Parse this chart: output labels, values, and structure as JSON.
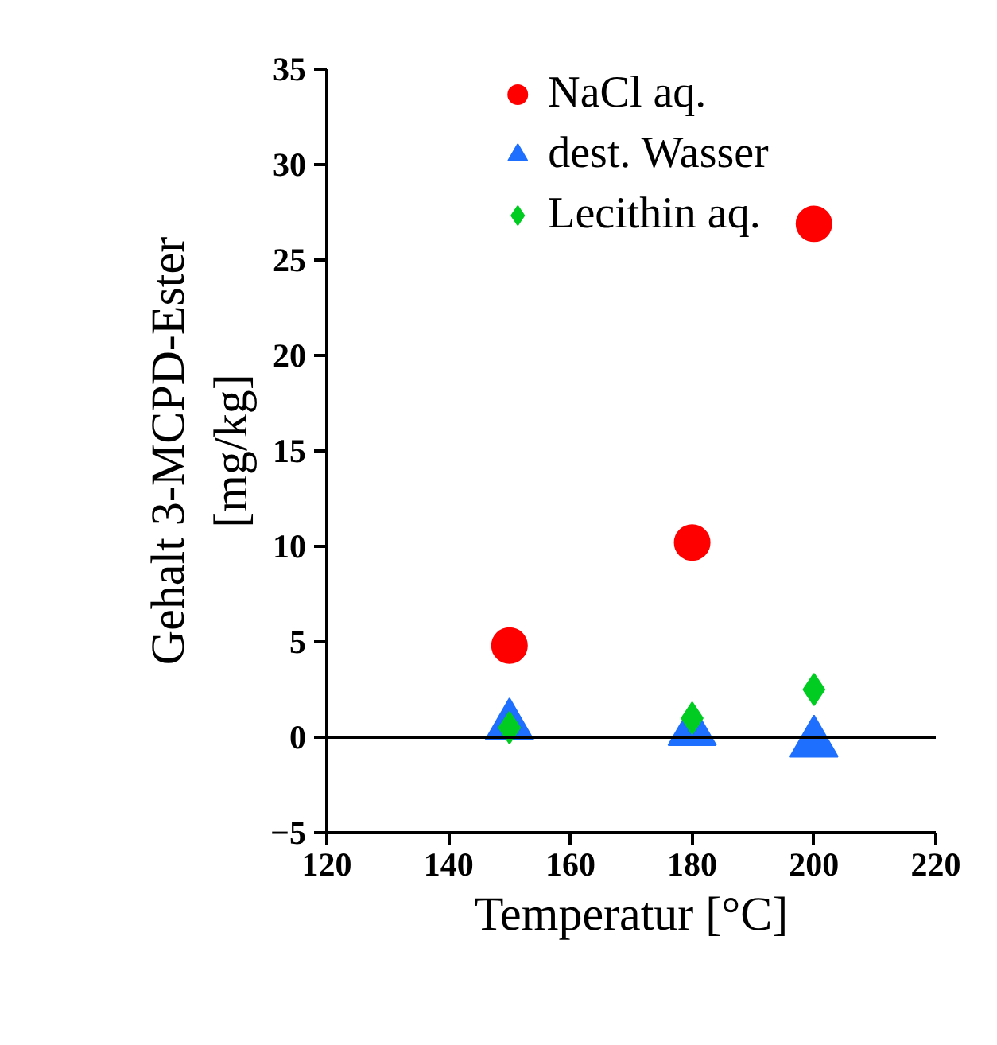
{
  "chart_data": {
    "type": "scatter",
    "xlabel": "Temperatur [°C]",
    "ylabel": "Gehalt 3-MCPD-Ester\n[mg/kg]",
    "x": [
      150,
      180,
      200
    ],
    "series": [
      {
        "name": "NaCl aq.",
        "color": "#ff0000",
        "marker": "circle",
        "values": [
          4.8,
          10.2,
          26.9
        ]
      },
      {
        "name": "dest. Wasser",
        "color": "#1f6fff",
        "marker": "triangle",
        "values": [
          0.6,
          0.3,
          -0.3
        ]
      },
      {
        "name": "Lecithin aq.",
        "color": "#00cc22",
        "marker": "diamond",
        "values": [
          0.5,
          1.0,
          2.5
        ]
      }
    ],
    "xlim": [
      120,
      220
    ],
    "xticks": [
      120,
      140,
      160,
      180,
      200,
      220
    ],
    "ylim": [
      -5,
      35
    ],
    "yticks": [
      -5,
      0,
      5,
      10,
      15,
      20,
      25,
      30,
      35
    ],
    "ref_lines": [
      {
        "axis": "y",
        "value": 0,
        "color": "#000000"
      }
    ],
    "legend": "top",
    "grid": false
  }
}
